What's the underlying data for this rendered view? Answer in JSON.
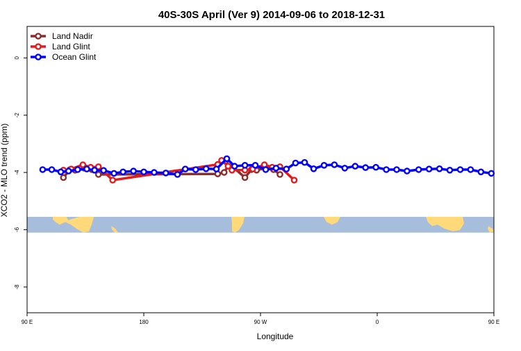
{
  "chart_data": {
    "type": "line",
    "title": "40S-30S April (Ver 9)   2014-09-06 to 2018-12-31",
    "xlabel": "Longitude",
    "ylabel": "XCO2 - MLO trend (ppm)",
    "xlim": [
      90,
      450
    ],
    "ylim": [
      -8.9,
      1.1
    ],
    "xticks": [
      {
        "value": 90,
        "label": "90 E"
      },
      {
        "value": 180,
        "label": "180"
      },
      {
        "value": 270,
        "label": "90 W"
      },
      {
        "value": 360,
        "label": "0"
      },
      {
        "value": 450,
        "label": "90 E"
      },
      {
        "value": 540,
        "label": "180"
      }
    ],
    "yticks": [
      {
        "value": 0,
        "label": "0"
      },
      {
        "value": -2,
        "label": "-2"
      },
      {
        "value": -4,
        "label": "-4"
      },
      {
        "value": -6,
        "label": "-6"
      },
      {
        "value": -8,
        "label": "-8"
      }
    ],
    "legend_position": "top-left",
    "map_strip": {
      "y_range": [
        -6.1,
        -5.55
      ],
      "ocean_color": "#a6bddb",
      "land_color": "#ffd97a"
    },
    "series": [
      {
        "name": "Land Nadir",
        "color": "#8b2d2d",
        "points": [
          [
            118,
            -4.18
          ],
          [
            123,
            -3.9
          ],
          [
            127,
            -3.92
          ],
          [
            134,
            -3.85
          ],
          [
            140,
            -3.9
          ],
          [
            145,
            -4.07
          ],
          [
            237,
            -4.05
          ],
          [
            242,
            -4.0
          ],
          [
            246,
            -3.7
          ],
          [
            258,
            -4.18
          ],
          [
            263,
            -3.9
          ],
          [
            267,
            -3.92
          ],
          [
            274,
            -3.85
          ],
          [
            280,
            -3.9
          ],
          [
            285,
            -4.07
          ]
        ]
      },
      {
        "name": "Land Glint",
        "color": "#e31a1c",
        "points": [
          [
            118,
            -3.92
          ],
          [
            124,
            -3.88
          ],
          [
            133,
            -3.73
          ],
          [
            139,
            -3.82
          ],
          [
            145,
            -3.8
          ],
          [
            156,
            -4.27
          ],
          [
            237,
            -3.72
          ],
          [
            240,
            -3.58
          ],
          [
            245,
            -3.78
          ],
          [
            248,
            -3.92
          ],
          [
            258,
            -3.92
          ],
          [
            264,
            -3.88
          ],
          [
            273,
            -3.73
          ],
          [
            279,
            -3.82
          ],
          [
            285,
            -3.8
          ],
          [
            296,
            -4.27
          ]
        ]
      },
      {
        "name": "Ocean Glint",
        "color": "#0000ff",
        "points": [
          [
            102,
            -3.9
          ],
          [
            109,
            -3.9
          ],
          [
            116,
            -3.98
          ],
          [
            122,
            -3.95
          ],
          [
            129,
            -3.9
          ],
          [
            136,
            -3.88
          ],
          [
            142,
            -3.92
          ],
          [
            149,
            -3.93
          ],
          [
            157,
            -4.03
          ],
          [
            164,
            -3.98
          ],
          [
            172,
            -3.95
          ],
          [
            180,
            -3.98
          ],
          [
            188,
            -4.0
          ],
          [
            197,
            -4.02
          ],
          [
            206,
            -4.07
          ],
          [
            212,
            -3.88
          ],
          [
            220,
            -3.9
          ],
          [
            228,
            -3.87
          ],
          [
            236,
            -3.88
          ],
          [
            244,
            -3.52
          ],
          [
            250,
            -3.78
          ],
          [
            258,
            -3.75
          ],
          [
            266,
            -3.75
          ],
          [
            274,
            -3.9
          ],
          [
            282,
            -3.85
          ],
          [
            290,
            -3.88
          ],
          [
            297,
            -3.67
          ],
          [
            304,
            -3.65
          ],
          [
            311,
            -3.87
          ],
          [
            319,
            -3.75
          ],
          [
            327,
            -3.73
          ],
          [
            335,
            -3.85
          ],
          [
            343,
            -3.78
          ],
          [
            351,
            -3.83
          ],
          [
            359,
            -3.82
          ],
          [
            367,
            -3.9
          ],
          [
            375,
            -3.9
          ],
          [
            383,
            -3.95
          ],
          [
            392,
            -3.9
          ],
          [
            400,
            -3.88
          ],
          [
            408,
            -3.87
          ],
          [
            416,
            -3.92
          ],
          [
            424,
            -3.9
          ],
          [
            432,
            -3.9
          ],
          [
            440,
            -3.98
          ],
          [
            448,
            -4.03
          ]
        ]
      }
    ]
  }
}
